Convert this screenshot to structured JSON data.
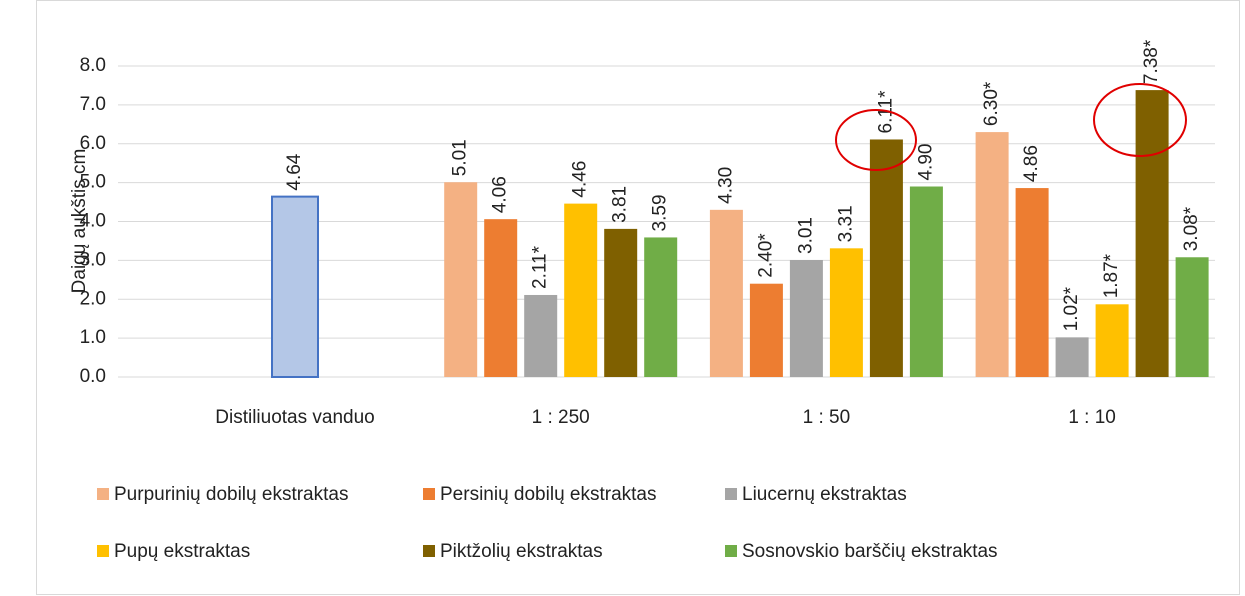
{
  "chart_data": {
    "type": "bar",
    "y_label": "Daigų aukštis cm",
    "categories": [
      "Distiliuotas vanduo",
      "1 : 250",
      "1 : 50",
      "1 : 10"
    ],
    "series": [
      {
        "color": "#b4c7e7",
        "edge_color": "#4472c4",
        "values": [
          4.64,
          null,
          null,
          null
        ],
        "value_labels": [
          "4.64",
          null,
          null,
          null
        ]
      },
      {
        "name": "Purpurinių dobilų ekstraktas",
        "color": "#f4b183",
        "values": [
          null,
          5.01,
          4.3,
          6.3
        ],
        "value_labels": [
          null,
          "5.01",
          "4.30",
          "6.30*"
        ]
      },
      {
        "name": "Persinių dobilų ekstraktas",
        "color": "#ed7d31",
        "values": [
          null,
          4.06,
          2.4,
          4.86
        ],
        "value_labels": [
          null,
          "4.06",
          "2.40*",
          "4.86"
        ]
      },
      {
        "name": "Liucernų ekstraktas",
        "color": "#a5a5a5",
        "values": [
          null,
          2.11,
          3.01,
          1.02
        ],
        "value_labels": [
          null,
          "2.11*",
          "3.01",
          "1.02*"
        ]
      },
      {
        "name": "Pupų ekstraktas",
        "color": "#ffc000",
        "values": [
          null,
          4.46,
          3.31,
          1.87
        ],
        "value_labels": [
          null,
          "4.46",
          "3.31",
          "1.87*"
        ]
      },
      {
        "name": "Piktžolių ekstraktas",
        "color": "#7f6000",
        "values": [
          null,
          3.81,
          6.11,
          7.38
        ],
        "value_labels": [
          null,
          "3.81",
          "6.11*",
          "7.38*"
        ]
      },
      {
        "name": "Sosnovskio barščių ekstraktas",
        "color": "#70ad47",
        "values": [
          null,
          3.59,
          4.9,
          3.08
        ],
        "value_labels": [
          null,
          "3.59",
          "4.90",
          "3.08*"
        ]
      }
    ],
    "ylim": [
      0,
      8
    ],
    "yticks": [
      {
        "value": 0,
        "label": "0.0"
      },
      {
        "value": 1,
        "label": "1.0"
      },
      {
        "value": 2,
        "label": "2.0"
      },
      {
        "value": 3,
        "label": "3.0"
      },
      {
        "value": 4,
        "label": "4.0"
      },
      {
        "value": 5,
        "label": "5.0"
      },
      {
        "value": 6,
        "label": "6.0"
      },
      {
        "value": 7,
        "label": "7.0"
      },
      {
        "value": 8,
        "label": "8.0"
      }
    ],
    "grid": true,
    "legend": "bottom"
  }
}
